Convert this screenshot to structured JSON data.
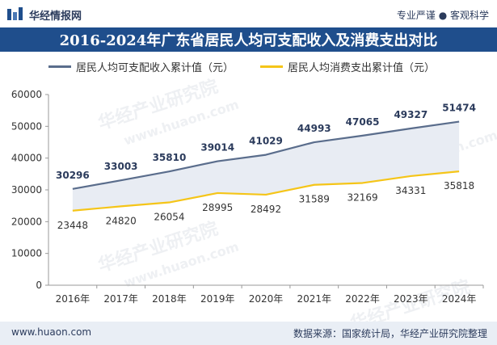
{
  "header": {
    "brand_name": "华经情报网",
    "tagline": "专业严谨 ● 客观科学"
  },
  "title": "2016-2024年广东省居民人均可支配收入及消费支出对比",
  "colors": {
    "title_bg": "#1f4e8c",
    "series_income": "#5a6d8c",
    "series_consumption": "#f5c518",
    "fill": "#e8ecf3"
  },
  "chart_data": {
    "type": "line",
    "title": "2016-2024年广东省居民人均可支配收入及消费支出对比",
    "categories": [
      "2016年",
      "2017年",
      "2018年",
      "2019年",
      "2020年",
      "2021年",
      "2022年",
      "2023年",
      "2024年"
    ],
    "series": [
      {
        "name": "居民人均可支配收入累计值（元）",
        "values": [
          30296,
          33003,
          35810,
          39014,
          41029,
          44993,
          47065,
          49327,
          51474
        ]
      },
      {
        "name": "居民人均消费支出累计值（元）",
        "values": [
          23448,
          24820,
          26054,
          28995,
          28492,
          31589,
          32169,
          34331,
          35818
        ]
      }
    ],
    "ylim": [
      0,
      60000
    ],
    "yticks": [
      0,
      10000,
      20000,
      30000,
      40000,
      50000,
      60000
    ],
    "xlabel": "",
    "ylabel": "",
    "legend": "top",
    "grid": false
  },
  "watermarks": [
    "华经产业研究院",
    "www.huaon.com"
  ],
  "footer": {
    "website": "www.huaon.com",
    "source": "数据来源：国家统计局，华经产业研究院整理"
  }
}
